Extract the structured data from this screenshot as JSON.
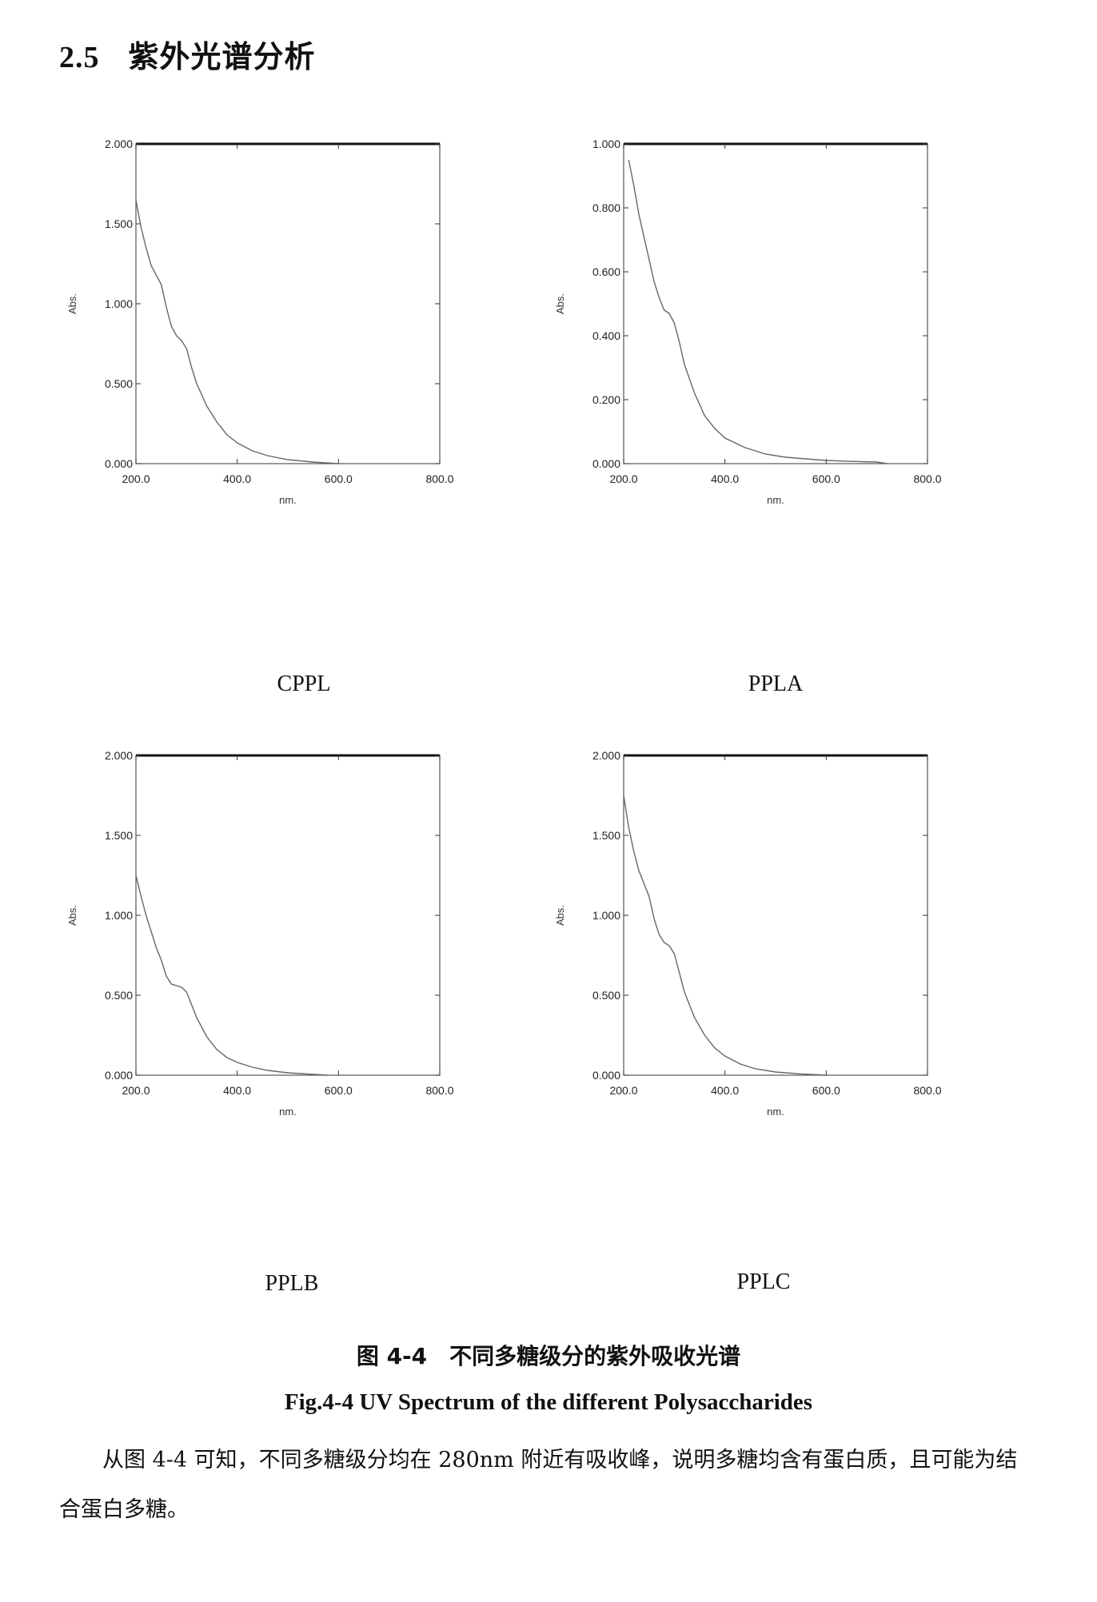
{
  "section": {
    "number": "2.5",
    "title": "紫外光谱分析"
  },
  "panels": [
    {
      "caption": "CPPL"
    },
    {
      "caption": "PPLA"
    },
    {
      "caption": "PPLB"
    },
    {
      "caption": "PPLC"
    }
  ],
  "figure": {
    "title_zh": "图 4-4　不同多糖级分的紫外吸收光谱",
    "title_en": "Fig.4-4 UV Spectrum of the different Polysaccharides"
  },
  "body": {
    "paragraph": "从图 4-4 可知，不同多糖级分均在 280nm 附近有吸收峰，说明多糖均含有蛋白质，且可能为结合蛋白多糖。"
  },
  "chart_data": [
    {
      "type": "line",
      "xlabel": "nm.",
      "ylabel": "Abs.",
      "xlim": [
        200,
        800
      ],
      "ylim": [
        0,
        2
      ],
      "xticks": [
        "200.0",
        "400.0",
        "600.0",
        "800.0"
      ],
      "yticks": [
        "0.000",
        "0.500",
        "1.000",
        "1.500",
        "2.000"
      ],
      "series": [
        {
          "x": [
            200,
            210,
            220,
            230,
            240,
            250,
            260,
            270,
            280,
            290,
            300,
            310,
            320,
            340,
            360,
            380,
            400,
            430,
            460,
            500,
            550,
            600
          ],
          "y": [
            1.65,
            1.48,
            1.35,
            1.24,
            1.18,
            1.12,
            0.98,
            0.86,
            0.8,
            0.77,
            0.72,
            0.6,
            0.5,
            0.36,
            0.26,
            0.18,
            0.13,
            0.08,
            0.05,
            0.025,
            0.01,
            0.0
          ]
        }
      ]
    },
    {
      "type": "line",
      "xlabel": "nm.",
      "ylabel": "Abs.",
      "xlim": [
        200,
        800
      ],
      "ylim": [
        0,
        1
      ],
      "xticks": [
        "200.0",
        "400.0",
        "600.0",
        "800.0"
      ],
      "yticks": [
        "0.000",
        "0.200",
        "0.400",
        "0.600",
        "0.800",
        "1.000"
      ],
      "series": [
        {
          "x": [
            210,
            220,
            230,
            240,
            250,
            260,
            270,
            280,
            290,
            300,
            310,
            320,
            340,
            360,
            380,
            400,
            440,
            480,
            520,
            560,
            600,
            650,
            700,
            720
          ],
          "y": [
            0.95,
            0.87,
            0.78,
            0.71,
            0.64,
            0.57,
            0.52,
            0.48,
            0.47,
            0.44,
            0.38,
            0.31,
            0.22,
            0.15,
            0.11,
            0.08,
            0.05,
            0.03,
            0.02,
            0.015,
            0.01,
            0.007,
            0.005,
            0.0
          ]
        }
      ]
    },
    {
      "type": "line",
      "xlabel": "nm.",
      "ylabel": "Abs.",
      "xlim": [
        200,
        800
      ],
      "ylim": [
        0,
        2
      ],
      "xticks": [
        "200.0",
        "400.0",
        "600.0",
        "800.0"
      ],
      "yticks": [
        "0.000",
        "0.500",
        "1.000",
        "1.500",
        "2.000"
      ],
      "series": [
        {
          "x": [
            200,
            210,
            220,
            230,
            240,
            250,
            260,
            270,
            280,
            290,
            300,
            310,
            320,
            340,
            360,
            380,
            400,
            430,
            460,
            500,
            550,
            580
          ],
          "y": [
            1.25,
            1.12,
            1.0,
            0.9,
            0.8,
            0.72,
            0.62,
            0.57,
            0.56,
            0.55,
            0.52,
            0.44,
            0.36,
            0.24,
            0.16,
            0.11,
            0.08,
            0.05,
            0.03,
            0.015,
            0.005,
            0.0
          ]
        }
      ]
    },
    {
      "type": "line",
      "xlabel": "nm.",
      "ylabel": "Abs.",
      "xlim": [
        200,
        800
      ],
      "ylim": [
        0,
        2
      ],
      "xticks": [
        "200.0",
        "400.0",
        "600.0",
        "800.0"
      ],
      "yticks": [
        "0.000",
        "0.500",
        "1.000",
        "1.500",
        "2.000"
      ],
      "series": [
        {
          "x": [
            200,
            210,
            220,
            230,
            240,
            250,
            260,
            270,
            280,
            290,
            300,
            310,
            320,
            340,
            360,
            380,
            400,
            430,
            460,
            500,
            550,
            600
          ],
          "y": [
            1.75,
            1.55,
            1.4,
            1.28,
            1.2,
            1.12,
            0.98,
            0.88,
            0.83,
            0.81,
            0.76,
            0.64,
            0.52,
            0.36,
            0.25,
            0.17,
            0.12,
            0.07,
            0.04,
            0.02,
            0.008,
            0.0
          ]
        }
      ]
    }
  ]
}
